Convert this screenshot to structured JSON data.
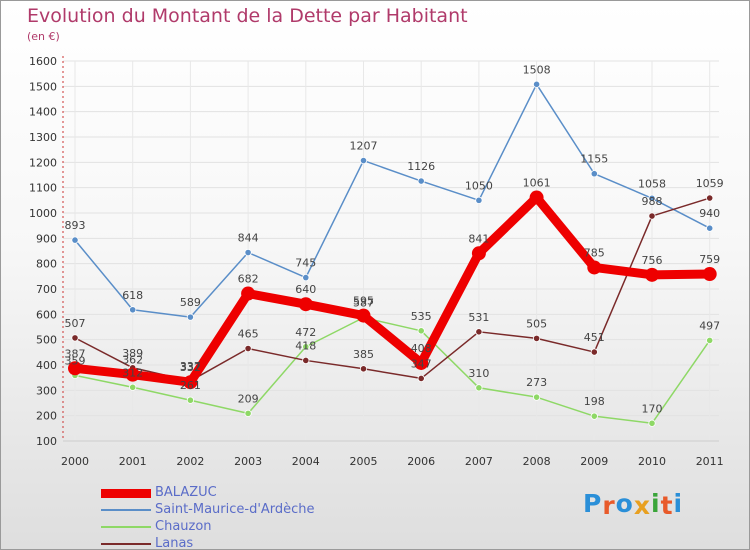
{
  "title": "Evolution du Montant de la Dette par Habitant",
  "subtitle": "(en €)",
  "logo": {
    "text": "Proxiti",
    "letter_colors": [
      "#2a8fd8",
      "#e85a2a",
      "#2a8fd8",
      "#e8a020",
      "#3aa53a",
      "#e85a2a",
      "#2a8fd8"
    ]
  },
  "chart_data": {
    "type": "line",
    "title": "Evolution du Montant de la Dette par Habitant",
    "subtitle": "(en €)",
    "xlabel": "",
    "ylabel": "",
    "x": [
      "2000",
      "2001",
      "2002",
      "2003",
      "2004",
      "2005",
      "2006",
      "2007",
      "2008",
      "2009",
      "2010",
      "2011"
    ],
    "ylim": [
      100,
      1600
    ],
    "yticks": [
      100,
      200,
      300,
      400,
      500,
      600,
      700,
      800,
      900,
      1000,
      1100,
      1200,
      1300,
      1400,
      1500,
      1600
    ],
    "grid": true,
    "legend_position": "bottom-left",
    "series": [
      {
        "name": "BALAZUC",
        "color": "#ee0000",
        "values": [
          387,
          362,
          332,
          682,
          640,
          595,
          408,
          841,
          1061,
          785,
          756,
          759
        ],
        "labels": [
          "387",
          "362",
          "332",
          "682",
          "640",
          "595",
          "408",
          "841",
          "1061",
          "785",
          "756",
          "759"
        ]
      },
      {
        "name": "Saint-Maurice-d'Ardèche",
        "color": "#5a8ec8",
        "values": [
          893,
          618,
          589,
          844,
          745,
          1207,
          1126,
          1050,
          1508,
          1155,
          1058,
          940
        ],
        "labels": [
          "893",
          "618",
          "589",
          "844",
          "745",
          "1207",
          "1126",
          "1050",
          "1508",
          "1155",
          "1058",
          "940"
        ]
      },
      {
        "name": "Chauzon",
        "color": "#8ed866",
        "values": [
          359,
          312,
          261,
          209,
          472,
          587,
          535,
          310,
          273,
          198,
          170,
          497
        ],
        "labels": [
          "359",
          "312",
          "261",
          "209",
          "472",
          "587",
          "535",
          "310",
          "273",
          "198",
          "170",
          "497"
        ]
      },
      {
        "name": "Lanas",
        "color": "#7a2a2a",
        "values": [
          507,
          389,
          337,
          465,
          418,
          385,
          347,
          531,
          505,
          451,
          988,
          1059
        ],
        "labels": [
          "507",
          "389",
          "337",
          "465",
          "418",
          "385",
          "347",
          "531",
          "505",
          "451",
          "988",
          "1059"
        ]
      }
    ]
  }
}
